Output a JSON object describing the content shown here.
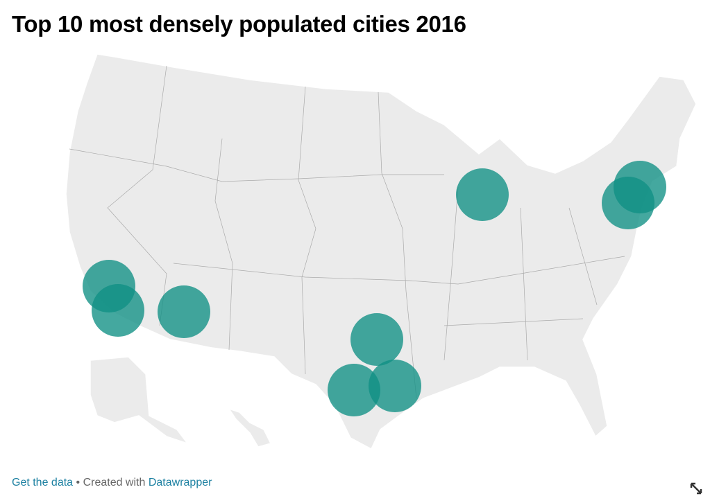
{
  "header": {
    "title": "Top 10 most densely populated cities 2016"
  },
  "footer": {
    "data_link": "Get the data",
    "separator": "• Created with",
    "tool_link": "Datawrapper"
  }
}
